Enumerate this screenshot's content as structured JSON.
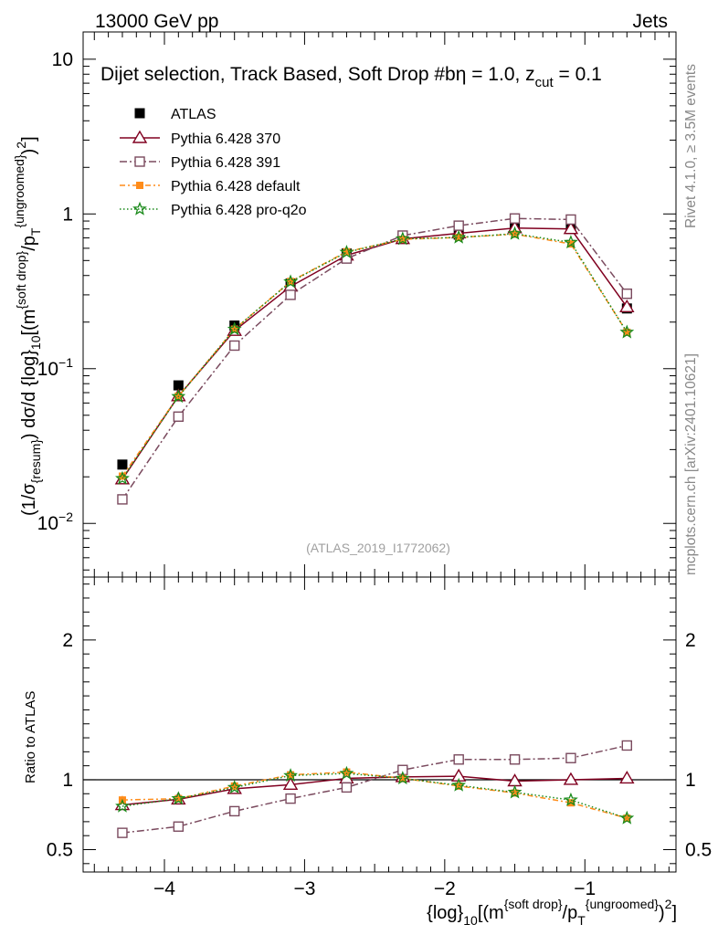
{
  "header": {
    "left": "13000 GeV pp",
    "right": "Jets"
  },
  "side_texts": {
    "rivet": "Rivet 4.1.0, ≥ 3.5M events",
    "mcplots": "mcplots.cern.ch [arXiv:2401.10621]"
  },
  "analysis_tag": "(ATLAS_2019_I1772062)",
  "chart_data": [
    {
      "type": "line",
      "panel": "main",
      "title": "Dijet selection, Track Based, Soft Drop #b",
      "title_parts": {
        "prefix": "Dijet selection, Track Based, Soft Drop #b",
        "eta": "η = 1.0, z",
        "cut_sub": "cut",
        "cut_val": " = 0.1"
      },
      "ylabel": "(1/σ{resum}) dσ/d {log}10[(m{soft drop}/pT{ungroomed})2]",
      "ylabel_parts": {
        "a": "(1/σ",
        "a_sub": "{resum}",
        "b": ") dσ/d {log}",
        "b_sub": "10",
        "c": "[(m",
        "c_sup": "{soft drop}",
        "d": "/p",
        "d_sub": "T",
        "d_sup": "{ungroomed}",
        "e": ")",
        "e_sup": "2",
        "f": "]"
      },
      "yscale": "log",
      "ylim": [
        0.0045,
        15
      ],
      "xlim": [
        -4.58,
        -0.35
      ],
      "yticks": [
        {
          "value": 0.01,
          "base": "10",
          "exp": "−2"
        },
        {
          "value": 0.1,
          "base": "10",
          "exp": "−1"
        },
        {
          "value": 1,
          "base": "1",
          "exp": ""
        },
        {
          "value": 10,
          "base": "10",
          "exp": ""
        }
      ],
      "x": [
        -4.3,
        -3.9,
        -3.5,
        -3.1,
        -2.7,
        -2.3,
        -1.9,
        -1.5,
        -1.1,
        -0.7
      ],
      "series": [
        {
          "name": "ATLAS",
          "color": "#000000",
          "marker": "square-filled",
          "values": [
            0.024,
            0.078,
            0.19,
            0.355,
            0.555,
            0.69,
            0.735,
            0.815,
            0.8,
            0.245
          ],
          "errors": [
            0.0012,
            0.003,
            0.006,
            0.009,
            0.012,
            0.014,
            0.014,
            0.016,
            0.016,
            0.007
          ]
        },
        {
          "name": "Pythia 6.428 370",
          "color": "#800020",
          "marker": "triangle-open",
          "dash": "",
          "values": [
            0.0193,
            0.0665,
            0.176,
            0.34,
            0.54,
            0.69,
            0.75,
            0.81,
            0.8,
            0.25
          ]
        },
        {
          "name": "Pythia 6.428 391",
          "color": "#7a4a5e",
          "marker": "square-open",
          "dash": "8,3,2,3",
          "values": [
            0.0143,
            0.049,
            0.141,
            0.3,
            0.515,
            0.725,
            0.84,
            0.935,
            0.92,
            0.305
          ]
        },
        {
          "name": "Pythia 6.428 default",
          "color": "#ff8c1a",
          "marker": "square-small",
          "dash": "6,3,2,3",
          "values": [
            0.0202,
            0.0665,
            0.18,
            0.366,
            0.57,
            0.685,
            0.705,
            0.74,
            0.64,
            0.172
          ]
        },
        {
          "name": "Pythia 6.428 pro-q2o",
          "color": "#1a8a1a",
          "marker": "star",
          "dash": "1.5,2.5",
          "values": [
            0.0195,
            0.066,
            0.18,
            0.364,
            0.565,
            0.69,
            0.705,
            0.745,
            0.655,
            0.172
          ]
        }
      ]
    },
    {
      "type": "line",
      "panel": "ratio",
      "ylabel": "Ratio to ATLAS",
      "xlabel": "{log}10[(m{soft drop}/pT{ungroomed})2]",
      "xlabel_parts": {
        "a": "{log}",
        "a_sub": "10",
        "b": "[(m",
        "b_sup": "{soft drop}",
        "c": "/p",
        "c_sub": "T",
        "c_sup": "{ungroomed}",
        "d": ")",
        "d_sup": "2",
        "e": "]"
      },
      "ylim": [
        0.34,
        2.45
      ],
      "xlim": [
        -4.58,
        -0.35
      ],
      "yticks": [
        "0.5",
        "1",
        "2"
      ],
      "xticks": [
        "−4",
        "−3",
        "−2",
        "−1"
      ],
      "x": [
        -4.3,
        -3.9,
        -3.5,
        -3.1,
        -2.7,
        -2.3,
        -1.9,
        -1.5,
        -1.1,
        -0.7
      ],
      "series": [
        {
          "name": "ATLAS",
          "color": "#000000",
          "values": [
            1,
            1,
            1,
            1,
            1,
            1,
            1,
            1,
            1,
            1
          ]
        },
        {
          "name": "Pythia 6.428 370",
          "color": "#800020",
          "marker": "triangle-open",
          "dash": "",
          "values": [
            0.82,
            0.86,
            0.935,
            0.965,
            1.01,
            1.02,
            1.025,
            0.99,
            1.0,
            1.01
          ]
        },
        {
          "name": "Pythia 6.428 391",
          "color": "#7a4a5e",
          "marker": "square-open",
          "dash": "8,3,2,3",
          "values": [
            0.62,
            0.665,
            0.775,
            0.865,
            0.945,
            1.07,
            1.145,
            1.145,
            1.155,
            1.245
          ],
          "errors": [
            0.035,
            0,
            0,
            0,
            0,
            0,
            0,
            0,
            0,
            0
          ]
        },
        {
          "name": "Pythia 6.428 default",
          "color": "#ff8c1a",
          "marker": "square-small",
          "dash": "6,3,2,3",
          "values": [
            0.855,
            0.865,
            0.955,
            1.035,
            1.055,
            1.01,
            0.955,
            0.905,
            0.835,
            0.725
          ],
          "errors": [
            0.03,
            0,
            0,
            0,
            0,
            0,
            0,
            0,
            0,
            0
          ]
        },
        {
          "name": "Pythia 6.428 pro-q2o",
          "color": "#1a8a1a",
          "marker": "star",
          "dash": "1.5,2.5",
          "values": [
            0.81,
            0.865,
            0.945,
            1.03,
            1.045,
            1.01,
            0.96,
            0.91,
            0.855,
            0.725
          ]
        }
      ]
    }
  ]
}
